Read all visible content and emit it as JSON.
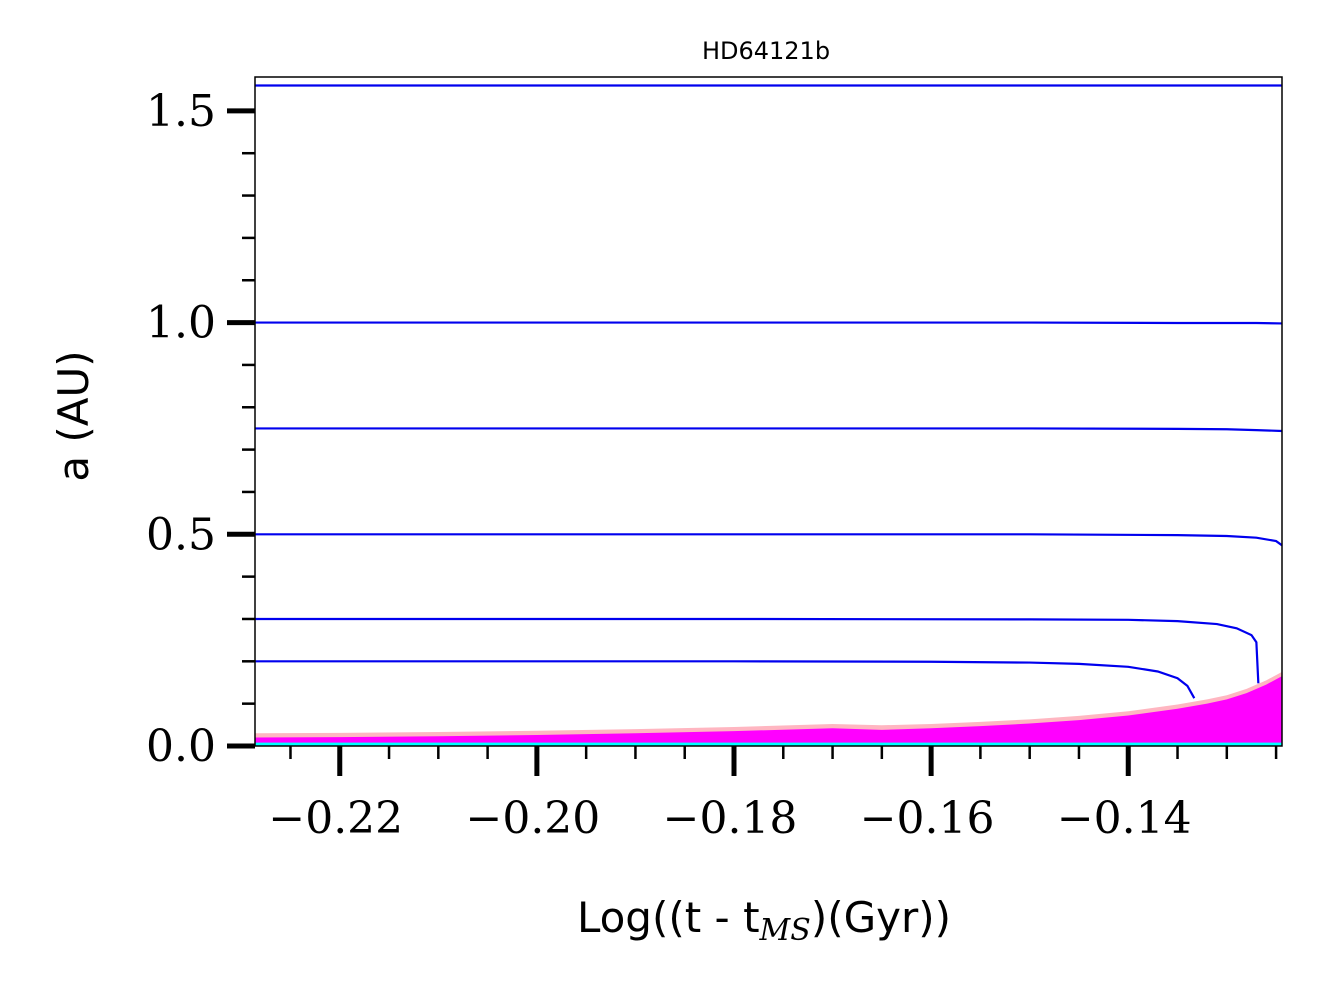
{
  "chart_data": {
    "type": "line",
    "title": "HD64121b",
    "xlabel": {
      "prefix": "Log((t - t",
      "subscript": "MS",
      "suffix": ")(Gyr))"
    },
    "ylabel": "a (AU)",
    "xlim": [
      -0.2286,
      -0.1244
    ],
    "ylim": [
      0.0,
      1.58
    ],
    "xticks": [
      -0.22,
      -0.2,
      -0.18,
      -0.16,
      -0.14
    ],
    "xtick_labels": [
      "−0.22",
      "−0.20",
      "−0.18",
      "−0.16",
      "−0.14"
    ],
    "x_minor_step": 0.005,
    "yticks": [
      0.0,
      0.5,
      1.0,
      1.5
    ],
    "ytick_labels": [
      "0.0",
      "0.5",
      "1.0",
      "1.5"
    ],
    "y_minor_step": 0.1,
    "grid": false,
    "colors": {
      "orbits": "#0000ee",
      "star_radius": "#ff00ff",
      "star_envelope": "#ffb6c1",
      "core": "#00ffff"
    },
    "series": [
      {
        "x": [
          -0.2286,
          -0.18,
          -0.15,
          -0.135,
          -0.13,
          -0.127,
          -0.1244
        ],
        "y": [
          1.56,
          1.56,
          1.56,
          1.56,
          1.56,
          1.56,
          1.56
        ]
      },
      {
        "x": [
          -0.2286,
          -0.18,
          -0.15,
          -0.135,
          -0.13,
          -0.127,
          -0.1244
        ],
        "y": [
          1.0,
          1.0,
          1.0,
          0.999,
          0.999,
          0.999,
          0.998
        ]
      },
      {
        "x": [
          -0.2286,
          -0.18,
          -0.15,
          -0.135,
          -0.13,
          -0.127,
          -0.1244
        ],
        "y": [
          0.75,
          0.75,
          0.75,
          0.749,
          0.748,
          0.746,
          0.744
        ]
      },
      {
        "x": [
          -0.2286,
          -0.18,
          -0.15,
          -0.135,
          -0.13,
          -0.127,
          -0.125,
          -0.1244
        ],
        "y": [
          0.5,
          0.5,
          0.5,
          0.498,
          0.496,
          0.492,
          0.484,
          0.474
        ]
      },
      {
        "x": [
          -0.2286,
          -0.18,
          -0.15,
          -0.14,
          -0.135,
          -0.131,
          -0.129,
          -0.1275,
          -0.127,
          -0.1268
        ],
        "y": [
          0.3,
          0.3,
          0.299,
          0.298,
          0.295,
          0.288,
          0.278,
          0.262,
          0.245,
          0.148
        ]
      },
      {
        "x": [
          -0.2286,
          -0.18,
          -0.16,
          -0.15,
          -0.145,
          -0.14,
          -0.137,
          -0.135,
          -0.134,
          -0.1333
        ],
        "y": [
          0.2,
          0.2,
          0.199,
          0.197,
          0.194,
          0.187,
          0.176,
          0.16,
          0.142,
          0.113
        ]
      }
    ],
    "stellar_radius": {
      "x": [
        -0.2286,
        -0.22,
        -0.21,
        -0.2,
        -0.19,
        -0.18,
        -0.17,
        -0.165,
        -0.16,
        -0.155,
        -0.15,
        -0.145,
        -0.14,
        -0.135,
        -0.132,
        -0.13,
        -0.128,
        -0.126,
        -0.1244
      ],
      "y": [
        0.02,
        0.021,
        0.023,
        0.026,
        0.03,
        0.035,
        0.042,
        0.038,
        0.042,
        0.047,
        0.053,
        0.061,
        0.072,
        0.088,
        0.1,
        0.11,
        0.125,
        0.145,
        0.165
      ]
    },
    "stellar_envelope": {
      "x": [
        -0.2286,
        -0.22,
        -0.21,
        -0.2,
        -0.19,
        -0.18,
        -0.17,
        -0.165,
        -0.16,
        -0.155,
        -0.15,
        -0.145,
        -0.14,
        -0.135,
        -0.132,
        -0.13,
        -0.128,
        -0.126,
        -0.1244
      ],
      "y": [
        0.03,
        0.031,
        0.033,
        0.036,
        0.04,
        0.045,
        0.052,
        0.049,
        0.052,
        0.057,
        0.063,
        0.071,
        0.082,
        0.098,
        0.11,
        0.12,
        0.135,
        0.155,
        0.175
      ]
    },
    "core_radius": 0.008
  }
}
